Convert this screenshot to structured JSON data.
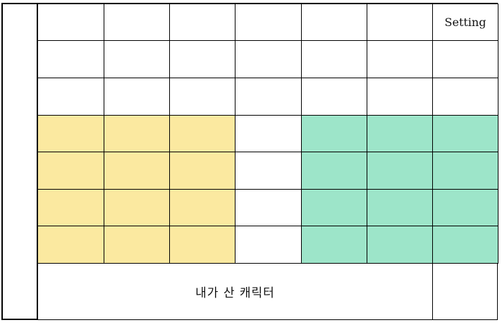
{
  "settings": {
    "label": "Setting"
  },
  "bottom": {
    "label": "내가 산 캐릭터"
  },
  "colors": {
    "yellow": "#fbe9a0",
    "green": "#9de5c9",
    "border": "#000000",
    "background": "#ffffff"
  },
  "grid": {
    "rows": 7,
    "cols": 7,
    "cell_colors": [
      [
        "white",
        "white",
        "white",
        "white",
        "white",
        "white",
        "white"
      ],
      [
        "white",
        "white",
        "white",
        "white",
        "white",
        "white",
        "white"
      ],
      [
        "white",
        "white",
        "white",
        "white",
        "white",
        "white",
        "white"
      ],
      [
        "yellow",
        "yellow",
        "yellow",
        "white",
        "green",
        "green",
        "green"
      ],
      [
        "yellow",
        "yellow",
        "yellow",
        "white",
        "green",
        "green",
        "green"
      ],
      [
        "yellow",
        "yellow",
        "yellow",
        "white",
        "green",
        "green",
        "green"
      ],
      [
        "yellow",
        "yellow",
        "yellow",
        "white",
        "green",
        "green",
        "green"
      ]
    ]
  }
}
